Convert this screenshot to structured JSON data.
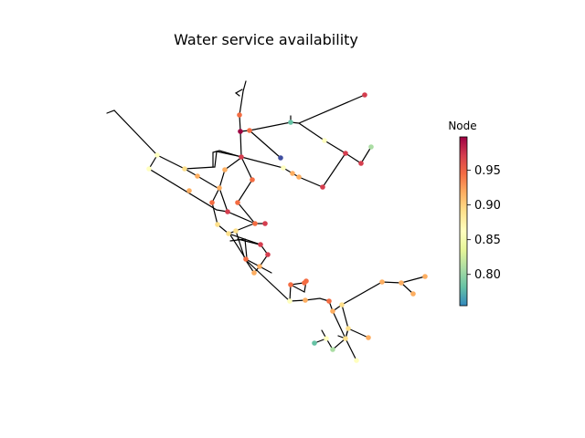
{
  "title": "Water service availability",
  "colorbar": {
    "label": "Node",
    "min": 0.755,
    "max": 0.998,
    "ticks": [
      0.8,
      0.85,
      0.9,
      0.95
    ],
    "tick_labels": [
      "0.80",
      "0.85",
      "0.90",
      "0.95"
    ],
    "colormap": "Spectral_r",
    "stops": [
      "#3288bd",
      "#66c2a5",
      "#abdda4",
      "#e6f598",
      "#ffffbf",
      "#fee08b",
      "#fdae61",
      "#f46d43",
      "#d53e4f",
      "#9e0142"
    ]
  }
}
